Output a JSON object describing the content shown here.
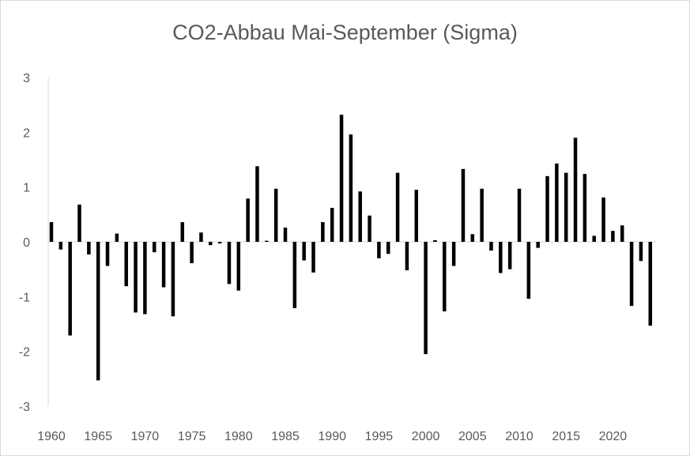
{
  "chart_data": {
    "type": "bar",
    "title": "CO2-Abbau Mai-September  (Sigma)",
    "xlabel": "",
    "ylabel": "",
    "ylim": [
      -3,
      3
    ],
    "yticks": [
      "-3",
      "-2",
      "-1",
      "0",
      "1",
      "2",
      "3"
    ],
    "xlim": [
      1960,
      2024
    ],
    "xticks": [
      "1960",
      "1965",
      "1970",
      "1975",
      "1980",
      "1985",
      "1990",
      "1995",
      "2000",
      "2005",
      "2010",
      "2015",
      "2020"
    ],
    "grid": false,
    "legend": "none",
    "bar_color": "#000000",
    "categories": [
      1960,
      1961,
      1962,
      1963,
      1964,
      1965,
      1966,
      1967,
      1968,
      1969,
      1970,
      1971,
      1972,
      1973,
      1974,
      1975,
      1976,
      1977,
      1978,
      1979,
      1980,
      1981,
      1982,
      1983,
      1984,
      1985,
      1986,
      1987,
      1988,
      1989,
      1990,
      1991,
      1992,
      1993,
      1994,
      1995,
      1996,
      1997,
      1998,
      1999,
      2000,
      2001,
      2002,
      2003,
      2004,
      2005,
      2006,
      2007,
      2008,
      2009,
      2010,
      2011,
      2012,
      2013,
      2014,
      2015,
      2016,
      2017,
      2018,
      2019,
      2020,
      2021,
      2022,
      2023,
      2024
    ],
    "values": [
      0.36,
      -0.14,
      -1.71,
      0.68,
      -0.23,
      -2.53,
      -0.44,
      0.15,
      -0.81,
      -1.29,
      -1.32,
      -0.19,
      -0.83,
      -1.36,
      0.36,
      -0.39,
      0.17,
      -0.06,
      -0.03,
      -0.77,
      -0.89,
      0.79,
      1.38,
      0.02,
      0.97,
      0.26,
      -1.21,
      -0.34,
      -0.56,
      0.36,
      0.62,
      2.32,
      1.96,
      0.92,
      0.48,
      -0.3,
      -0.22,
      1.26,
      -0.52,
      0.95,
      -2.05,
      0.03,
      -1.27,
      -0.44,
      1.33,
      0.14,
      0.97,
      -0.16,
      -0.57,
      -0.5,
      0.97,
      -1.04,
      -0.11,
      1.2,
      1.43,
      1.26,
      1.9,
      1.24,
      0.11,
      0.81,
      0.2,
      0.3,
      -1.17,
      -0.35,
      -1.53
    ]
  }
}
